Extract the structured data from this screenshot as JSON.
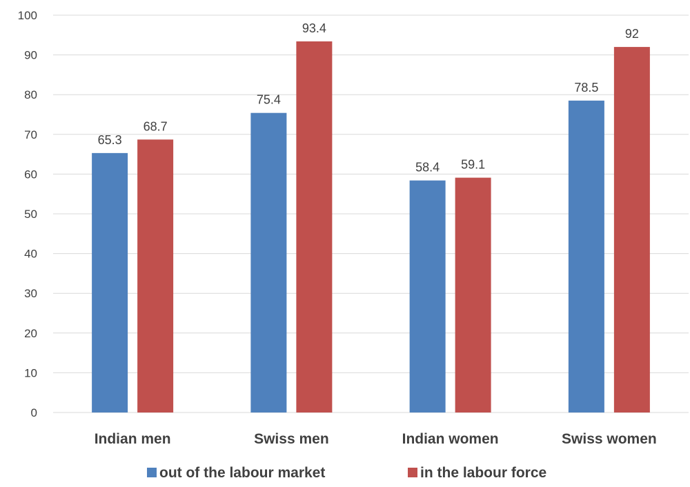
{
  "chart_data": {
    "type": "bar",
    "categories": [
      "Indian men",
      "Swiss men",
      "Indian women",
      "Swiss women"
    ],
    "series": [
      {
        "name": "out of the labour market",
        "values": [
          65.3,
          75.4,
          58.4,
          78.5
        ],
        "color": "#4f81bd"
      },
      {
        "name": "in the labour force",
        "values": [
          68.7,
          93.4,
          59.1,
          92
        ],
        "color": "#c0504d"
      }
    ],
    "data_labels": [
      [
        "65.3",
        "75.4",
        "58.4",
        "78.5"
      ],
      [
        "68.7",
        "93.4",
        "59.1",
        "92"
      ]
    ],
    "yticks": [
      "0",
      "10",
      "20",
      "30",
      "40",
      "50",
      "60",
      "70",
      "80",
      "90",
      "100"
    ],
    "ylim": [
      0,
      100
    ],
    "grid": true,
    "legend_position": "bottom",
    "title": "",
    "xlabel": "",
    "ylabel": ""
  }
}
